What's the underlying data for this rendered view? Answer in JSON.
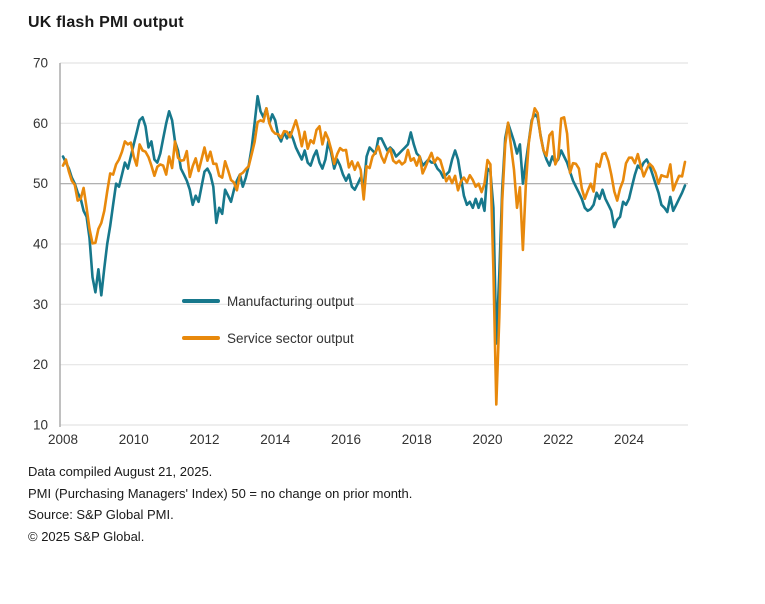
{
  "title": "UK flash PMI output",
  "legend": {
    "items": [
      {
        "label": "Manufacturing output",
        "color": "#17788c"
      },
      {
        "label": "Service sector output",
        "color": "#e8890c"
      }
    ]
  },
  "footer": {
    "lines": [
      "Data compiled August 21, 2025.",
      "PMI (Purchasing Managers' Index) 50 = no change on prior month.",
      "Source: S&P Global PMI.",
      "© 2025 S&P Global."
    ]
  },
  "colors": {
    "manufacturing": "#17788c",
    "services": "#e8890c",
    "gridline": "#e4e4e4",
    "reference_line": "#a6a6a6",
    "axis_line": "#a6a6a6",
    "text": "#333333"
  },
  "chart_data": {
    "type": "line",
    "title": "UK flash PMI output",
    "x_start": {
      "year": 2008,
      "month": 1
    },
    "x_end": {
      "year": 2025,
      "month": 8
    },
    "x_tick_years": [
      2008,
      2010,
      2012,
      2014,
      2016,
      2018,
      2020,
      2022,
      2024
    ],
    "ylim": [
      10,
      70
    ],
    "y_ticks": [
      10,
      20,
      30,
      40,
      50,
      60,
      70
    ],
    "reference_line": 50,
    "grid": "horizontal",
    "legend_position": "inside-left-middle",
    "series": [
      {
        "name": "Manufacturing output",
        "color": "#17788c",
        "values": [
          54.5,
          53.5,
          52.5,
          51.0,
          50.0,
          48.5,
          47.5,
          45.5,
          44.5,
          41.0,
          34.5,
          32.0,
          35.8,
          31.5,
          36.0,
          40.0,
          43.0,
          46.5,
          50.0,
          49.5,
          51.5,
          53.5,
          52.5,
          54.5,
          56.5,
          58.5,
          60.5,
          61.0,
          59.5,
          56.0,
          57.0,
          54.0,
          53.5,
          55.0,
          57.5,
          60.0,
          62.0,
          60.5,
          57.0,
          55.5,
          52.5,
          51.5,
          50.5,
          49.0,
          46.5,
          48.0,
          47.0,
          49.5,
          52.0,
          52.5,
          51.5,
          49.5,
          43.5,
          46.0,
          45.0,
          49.0,
          48.0,
          47.0,
          49.0,
          50.5,
          51.5,
          49.5,
          51.0,
          53.0,
          56.0,
          60.0,
          64.5,
          62.0,
          61.0,
          62.5,
          60.0,
          61.5,
          60.5,
          58.0,
          57.0,
          58.5,
          57.5,
          58.5,
          57.5,
          56.0,
          55.0,
          54.0,
          55.5,
          53.5,
          53.0,
          54.5,
          55.5,
          53.5,
          52.5,
          54.0,
          57.0,
          55.0,
          52.5,
          54.0,
          53.0,
          51.5,
          50.5,
          51.5,
          49.5,
          49.0,
          50.0,
          51.0,
          49.3,
          54.5,
          56.0,
          55.5,
          55.0,
          57.5,
          57.5,
          56.5,
          55.5,
          56.0,
          55.5,
          54.5,
          55.0,
          55.5,
          56.0,
          56.5,
          58.5,
          56.5,
          55.0,
          54.5,
          53.0,
          53.5,
          54.0,
          53.5,
          53.5,
          52.5,
          52.0,
          51.0,
          51.5,
          52.0,
          54.0,
          55.5,
          54.0,
          51.0,
          48.0,
          46.5,
          47.0,
          46.0,
          47.5,
          46.0,
          47.5,
          45.5,
          52.5,
          52.0,
          46.0,
          23.5,
          35.0,
          49.0,
          57.5,
          60.0,
          58.5,
          57.0,
          55.0,
          56.5,
          50.0,
          53.5,
          57.0,
          60.5,
          61.5,
          61.0,
          58.0,
          55.5,
          54.0,
          53.0,
          54.5,
          53.5,
          54.0,
          55.5,
          54.5,
          53.5,
          52.0,
          50.5,
          49.5,
          48.5,
          47.5,
          46.0,
          45.5,
          45.8,
          46.5,
          48.5,
          47.5,
          49.0,
          47.5,
          46.5,
          45.5,
          42.8,
          44.0,
          44.5,
          47.0,
          46.5,
          47.5,
          49.5,
          51.5,
          53.0,
          52.5,
          53.5,
          54.0,
          53.0,
          51.5,
          50.0,
          48.5,
          46.5,
          46.0,
          45.3,
          47.8,
          45.5,
          46.5,
          47.5,
          48.5,
          49.7
        ]
      },
      {
        "name": "Service sector output",
        "color": "#e8890c",
        "values": [
          53.0,
          54.0,
          52.0,
          50.5,
          49.8,
          47.2,
          47.5,
          49.3,
          46.0,
          42.5,
          40.1,
          40.2,
          42.5,
          43.5,
          45.5,
          48.7,
          51.7,
          51.5,
          53.2,
          54.0,
          55.3,
          57.0,
          56.5,
          56.8,
          54.5,
          53.0,
          56.5,
          55.5,
          55.3,
          54.4,
          53.0,
          51.3,
          52.8,
          53.2,
          53.0,
          51.5,
          54.5,
          52.6,
          57.0,
          54.3,
          53.8,
          53.9,
          55.4,
          51.1,
          52.9,
          54.2,
          52.1,
          54.0,
          56.0,
          53.8,
          55.3,
          53.3,
          53.3,
          51.3,
          51.0,
          53.7,
          52.2,
          50.6,
          50.2,
          48.9,
          51.5,
          51.8,
          52.4,
          52.9,
          54.9,
          56.9,
          60.2,
          60.5,
          60.3,
          62.5,
          60.0,
          58.8,
          58.3,
          58.2,
          57.6,
          58.7,
          58.6,
          57.7,
          59.1,
          60.5,
          58.7,
          56.2,
          58.6,
          55.8,
          57.2,
          56.7,
          58.9,
          59.5,
          56.5,
          58.5,
          57.4,
          55.6,
          53.3,
          54.9,
          55.9,
          55.5,
          55.6,
          52.7,
          53.7,
          52.3,
          53.5,
          52.3,
          47.4,
          52.9,
          52.6,
          54.5,
          55.2,
          56.2,
          54.5,
          53.5,
          55.0,
          55.8,
          53.8,
          53.4,
          53.8,
          53.2,
          53.6,
          55.6,
          53.8,
          54.2,
          53.0,
          54.5,
          51.7,
          52.8,
          54.0,
          55.1,
          53.5,
          54.3,
          53.9,
          52.2,
          50.4,
          51.2,
          50.1,
          51.3,
          48.9,
          50.4,
          51.0,
          50.2,
          51.4,
          50.6,
          49.5,
          50.0,
          48.6,
          50.0,
          53.9,
          53.2,
          35.7,
          13.4,
          27.8,
          47.1,
          56.5,
          60.1,
          56.1,
          52.3,
          46.0,
          49.4,
          39.0,
          49.7,
          56.8,
          60.1,
          62.5,
          61.7,
          57.8,
          55.5,
          54.6,
          58.0,
          58.6,
          53.2,
          54.3,
          60.8,
          61.0,
          58.3,
          51.8,
          53.4,
          53.3,
          52.5,
          49.2,
          47.5,
          48.8,
          50.0,
          48.7,
          53.3,
          52.8,
          54.9,
          55.1,
          53.7,
          51.5,
          48.7,
          47.2,
          49.2,
          50.5,
          53.4,
          54.3,
          54.3,
          53.4,
          54.9,
          52.9,
          51.2,
          52.4,
          53.3,
          52.8,
          51.8,
          50.0,
          51.4,
          51.2,
          51.1,
          53.2,
          48.9,
          50.2,
          51.3,
          51.2,
          53.6
        ]
      }
    ]
  }
}
